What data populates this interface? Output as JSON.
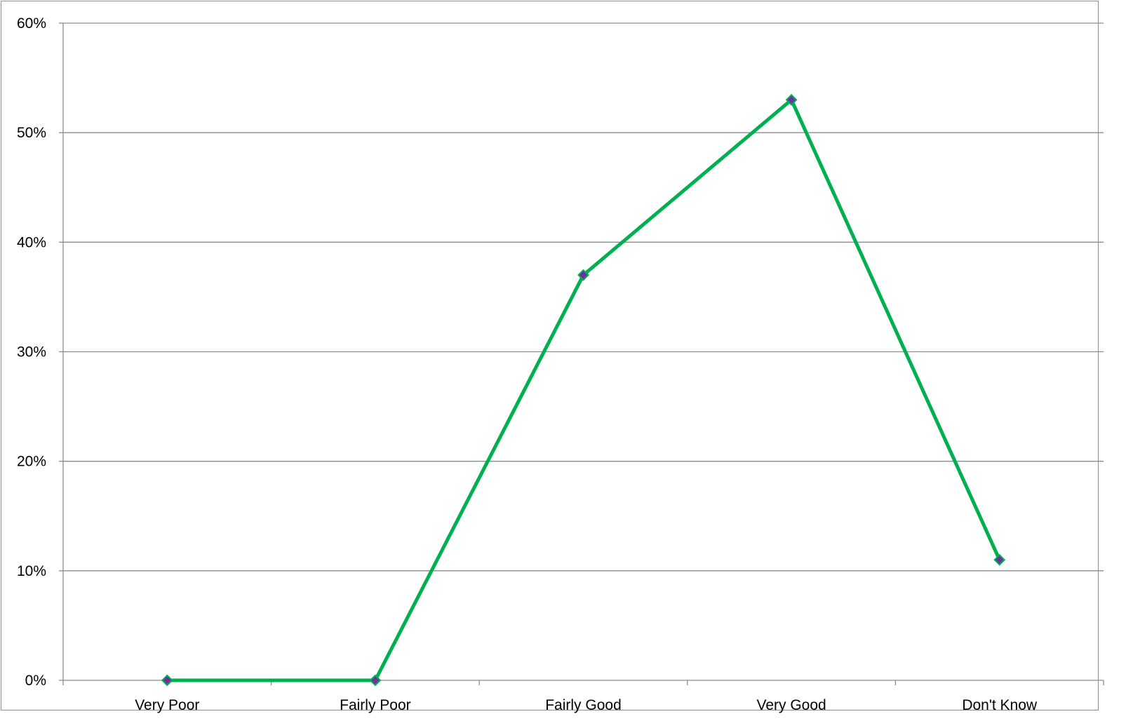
{
  "chart_data": {
    "type": "line",
    "categories": [
      "Very Poor",
      "Fairly Poor",
      "Fairly Good",
      "Very Good",
      "Don't Know"
    ],
    "series": [
      {
        "values": [
          0,
          0,
          37,
          53,
          11
        ],
        "line_color": "#00b050",
        "marker_color": "#7030a0",
        "marker_shape": "diamond"
      }
    ],
    "y_ticks": [
      "0%",
      "10%",
      "20%",
      "30%",
      "40%",
      "50%",
      "60%"
    ],
    "ylim": [
      0,
      60
    ],
    "y_unit": "%",
    "grid": true,
    "legend": "none",
    "title": "",
    "xlabel": "",
    "ylabel": ""
  },
  "colors": {
    "gridline": "#8c8c8c",
    "axis": "#8c8c8c",
    "frame": "#8c8c8c"
  }
}
